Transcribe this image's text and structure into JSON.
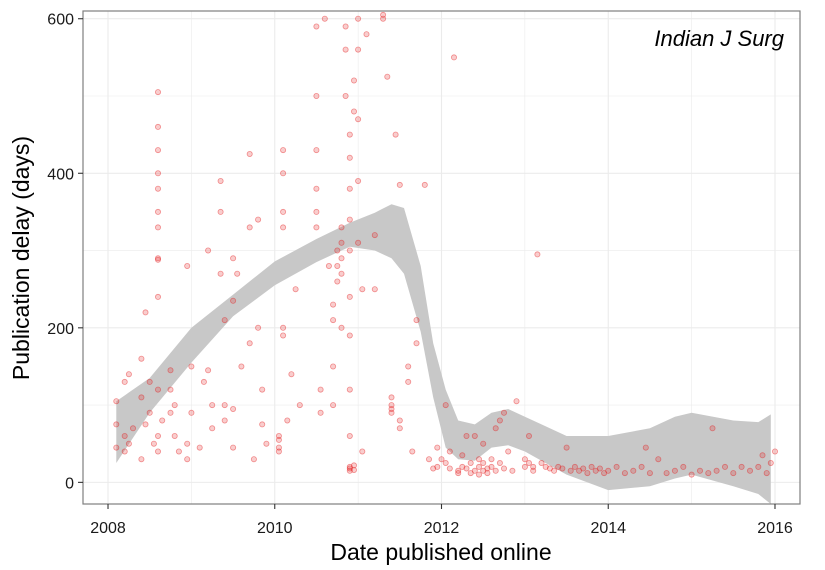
{
  "chart_data": {
    "type": "scatter",
    "title": "",
    "panel_label": "Indian J Surg",
    "xlabel": "Date published online",
    "ylabel": "Publication delay (days)",
    "x_unit": "decimal year",
    "xlim": [
      2007.7,
      2016.3
    ],
    "ylim": [
      -28,
      610
    ],
    "x_ticks": [
      2008,
      2010,
      2012,
      2014,
      2016
    ],
    "x_tick_labels": [
      "2008",
      "2010",
      "2012",
      "2014",
      "2016"
    ],
    "y_ticks": [
      0,
      200,
      400,
      600
    ],
    "y_tick_labels": [
      "0",
      "200",
      "400",
      "600"
    ],
    "grid": true,
    "legend": "none",
    "colors": {
      "points": "#e41a1c",
      "ribbon": "#c8c8c8",
      "grid": "#ebebeb",
      "frame": "#7f7f7f"
    },
    "series": [
      {
        "kind": "points",
        "points": [
          [
            2008.1,
            75
          ],
          [
            2008.1,
            45
          ],
          [
            2008.1,
            105
          ],
          [
            2008.2,
            60
          ],
          [
            2008.2,
            40
          ],
          [
            2008.2,
            130
          ],
          [
            2008.25,
            50
          ],
          [
            2008.25,
            140
          ],
          [
            2008.3,
            70
          ],
          [
            2008.4,
            30
          ],
          [
            2008.4,
            110
          ],
          [
            2008.4,
            160
          ],
          [
            2008.45,
            220
          ],
          [
            2008.45,
            75
          ],
          [
            2008.5,
            130
          ],
          [
            2008.5,
            90
          ],
          [
            2008.55,
            50
          ],
          [
            2008.6,
            288
          ],
          [
            2008.6,
            290
          ],
          [
            2008.6,
            330
          ],
          [
            2008.6,
            350
          ],
          [
            2008.6,
            380
          ],
          [
            2008.6,
            400
          ],
          [
            2008.6,
            430
          ],
          [
            2008.6,
            460
          ],
          [
            2008.6,
            505
          ],
          [
            2008.6,
            240
          ],
          [
            2008.6,
            120
          ],
          [
            2008.6,
            60
          ],
          [
            2008.6,
            40
          ],
          [
            2008.65,
            80
          ],
          [
            2008.75,
            145
          ],
          [
            2008.75,
            120
          ],
          [
            2008.75,
            90
          ],
          [
            2008.8,
            60
          ],
          [
            2008.8,
            100
          ],
          [
            2008.85,
            40
          ],
          [
            2008.95,
            50
          ],
          [
            2008.95,
            30
          ],
          [
            2008.95,
            280
          ],
          [
            2009.0,
            150
          ],
          [
            2009.0,
            90
          ],
          [
            2009.1,
            45
          ],
          [
            2009.15,
            130
          ],
          [
            2009.2,
            145
          ],
          [
            2009.2,
            300
          ],
          [
            2009.25,
            70
          ],
          [
            2009.25,
            100
          ],
          [
            2009.35,
            270
          ],
          [
            2009.35,
            350
          ],
          [
            2009.35,
            390
          ],
          [
            2009.4,
            210
          ],
          [
            2009.4,
            100
          ],
          [
            2009.4,
            80
          ],
          [
            2009.5,
            235
          ],
          [
            2009.5,
            290
          ],
          [
            2009.5,
            95
          ],
          [
            2009.5,
            45
          ],
          [
            2009.55,
            270
          ],
          [
            2009.6,
            150
          ],
          [
            2009.7,
            180
          ],
          [
            2009.7,
            330
          ],
          [
            2009.7,
            425
          ],
          [
            2009.75,
            30
          ],
          [
            2009.8,
            200
          ],
          [
            2009.8,
            340
          ],
          [
            2009.85,
            120
          ],
          [
            2009.85,
            75
          ],
          [
            2009.9,
            50
          ],
          [
            2010.05,
            60
          ],
          [
            2010.05,
            55
          ],
          [
            2010.05,
            45
          ],
          [
            2010.05,
            40
          ],
          [
            2010.1,
            200
          ],
          [
            2010.1,
            190
          ],
          [
            2010.1,
            430
          ],
          [
            2010.1,
            400
          ],
          [
            2010.1,
            350
          ],
          [
            2010.1,
            330
          ],
          [
            2010.15,
            80
          ],
          [
            2010.2,
            140
          ],
          [
            2010.25,
            250
          ],
          [
            2010.3,
            100
          ],
          [
            2010.5,
            590
          ],
          [
            2010.5,
            500
          ],
          [
            2010.5,
            430
          ],
          [
            2010.5,
            380
          ],
          [
            2010.5,
            350
          ],
          [
            2010.5,
            330
          ],
          [
            2010.55,
            120
          ],
          [
            2010.55,
            90
          ],
          [
            2010.6,
            600
          ],
          [
            2010.65,
            280
          ],
          [
            2010.7,
            230
          ],
          [
            2010.7,
            210
          ],
          [
            2010.7,
            150
          ],
          [
            2010.7,
            100
          ],
          [
            2010.75,
            280
          ],
          [
            2010.75,
            300
          ],
          [
            2010.75,
            260
          ],
          [
            2010.8,
            270
          ],
          [
            2010.8,
            290
          ],
          [
            2010.8,
            310
          ],
          [
            2010.8,
            330
          ],
          [
            2010.8,
            200
          ],
          [
            2010.85,
            500
          ],
          [
            2010.85,
            560
          ],
          [
            2010.85,
            590
          ],
          [
            2010.9,
            450
          ],
          [
            2010.9,
            420
          ],
          [
            2010.9,
            380
          ],
          [
            2010.9,
            340
          ],
          [
            2010.9,
            300
          ],
          [
            2010.9,
            240
          ],
          [
            2010.9,
            190
          ],
          [
            2010.9,
            120
          ],
          [
            2010.9,
            60
          ],
          [
            2010.9,
            20
          ],
          [
            2010.9,
            18
          ],
          [
            2010.9,
            15
          ],
          [
            2010.95,
            16
          ],
          [
            2010.95,
            22
          ],
          [
            2010.95,
            480
          ],
          [
            2010.95,
            520
          ],
          [
            2011.0,
            600
          ],
          [
            2011.0,
            560
          ],
          [
            2011.0,
            470
          ],
          [
            2011.0,
            390
          ],
          [
            2011.0,
            310
          ],
          [
            2011.05,
            250
          ],
          [
            2011.05,
            40
          ],
          [
            2011.1,
            580
          ],
          [
            2011.2,
            320
          ],
          [
            2011.2,
            250
          ],
          [
            2011.3,
            600
          ],
          [
            2011.3,
            605
          ],
          [
            2011.35,
            525
          ],
          [
            2011.4,
            90
          ],
          [
            2011.4,
            95
          ],
          [
            2011.4,
            100
          ],
          [
            2011.4,
            110
          ],
          [
            2011.45,
            450
          ],
          [
            2011.5,
            385
          ],
          [
            2011.5,
            70
          ],
          [
            2011.5,
            80
          ],
          [
            2011.6,
            130
          ],
          [
            2011.6,
            150
          ],
          [
            2011.65,
            40
          ],
          [
            2011.7,
            180
          ],
          [
            2011.7,
            210
          ],
          [
            2011.8,
            385
          ],
          [
            2011.85,
            30
          ],
          [
            2011.9,
            18
          ],
          [
            2011.95,
            20
          ],
          [
            2011.95,
            45
          ],
          [
            2012.0,
            30
          ],
          [
            2012.05,
            25
          ],
          [
            2012.05,
            100
          ],
          [
            2012.1,
            18
          ],
          [
            2012.1,
            40
          ],
          [
            2012.15,
            550
          ],
          [
            2012.2,
            15
          ],
          [
            2012.2,
            12
          ],
          [
            2012.25,
            20
          ],
          [
            2012.25,
            35
          ],
          [
            2012.3,
            60
          ],
          [
            2012.3,
            18
          ],
          [
            2012.35,
            12
          ],
          [
            2012.35,
            25
          ],
          [
            2012.4,
            60
          ],
          [
            2012.4,
            15
          ],
          [
            2012.45,
            10
          ],
          [
            2012.45,
            20
          ],
          [
            2012.45,
            30
          ],
          [
            2012.5,
            15
          ],
          [
            2012.5,
            25
          ],
          [
            2012.5,
            50
          ],
          [
            2012.55,
            12
          ],
          [
            2012.55,
            18
          ],
          [
            2012.6,
            20
          ],
          [
            2012.6,
            30
          ],
          [
            2012.65,
            15
          ],
          [
            2012.65,
            70
          ],
          [
            2012.7,
            25
          ],
          [
            2012.7,
            80
          ],
          [
            2012.75,
            18
          ],
          [
            2012.75,
            90
          ],
          [
            2012.8,
            40
          ],
          [
            2012.85,
            15
          ],
          [
            2012.9,
            105
          ],
          [
            2013.0,
            30
          ],
          [
            2013.0,
            20
          ],
          [
            2013.05,
            25
          ],
          [
            2013.05,
            60
          ],
          [
            2013.1,
            20
          ],
          [
            2013.1,
            15
          ],
          [
            2013.15,
            295
          ],
          [
            2013.2,
            25
          ],
          [
            2013.25,
            20
          ],
          [
            2013.3,
            18
          ],
          [
            2013.35,
            15
          ],
          [
            2013.4,
            20
          ],
          [
            2013.45,
            18
          ],
          [
            2013.5,
            45
          ],
          [
            2013.55,
            15
          ],
          [
            2013.6,
            20
          ],
          [
            2013.65,
            15
          ],
          [
            2013.7,
            18
          ],
          [
            2013.75,
            12
          ],
          [
            2013.8,
            20
          ],
          [
            2013.85,
            15
          ],
          [
            2013.9,
            18
          ],
          [
            2013.95,
            12
          ],
          [
            2014.0,
            15
          ],
          [
            2014.1,
            20
          ],
          [
            2014.2,
            12
          ],
          [
            2014.3,
            15
          ],
          [
            2014.4,
            20
          ],
          [
            2014.45,
            45
          ],
          [
            2014.5,
            12
          ],
          [
            2014.6,
            30
          ],
          [
            2014.7,
            12
          ],
          [
            2014.8,
            15
          ],
          [
            2014.9,
            20
          ],
          [
            2015.0,
            10
          ],
          [
            2015.1,
            15
          ],
          [
            2015.2,
            12
          ],
          [
            2015.25,
            70
          ],
          [
            2015.3,
            15
          ],
          [
            2015.4,
            20
          ],
          [
            2015.5,
            12
          ],
          [
            2015.6,
            20
          ],
          [
            2015.7,
            15
          ],
          [
            2015.8,
            20
          ],
          [
            2015.85,
            35
          ],
          [
            2015.9,
            12
          ],
          [
            2015.95,
            25
          ],
          [
            2016.0,
            40
          ]
        ]
      },
      {
        "kind": "smooth_confidence_band",
        "upper": [
          [
            2008.1,
            105
          ],
          [
            2008.5,
            135
          ],
          [
            2009.0,
            200
          ],
          [
            2009.5,
            243
          ],
          [
            2010.0,
            286
          ],
          [
            2010.5,
            315
          ],
          [
            2010.9,
            336
          ],
          [
            2011.2,
            349
          ],
          [
            2011.4,
            360
          ],
          [
            2011.55,
            355
          ],
          [
            2011.75,
            280
          ],
          [
            2011.9,
            180
          ],
          [
            2012.05,
            120
          ],
          [
            2012.2,
            80
          ],
          [
            2012.4,
            75
          ],
          [
            2012.6,
            90
          ],
          [
            2012.8,
            95
          ],
          [
            2013.0,
            85
          ],
          [
            2013.2,
            75
          ],
          [
            2013.5,
            60
          ],
          [
            2014.0,
            60
          ],
          [
            2014.5,
            70
          ],
          [
            2014.8,
            85
          ],
          [
            2015.0,
            90
          ],
          [
            2015.5,
            80
          ],
          [
            2015.8,
            78
          ],
          [
            2015.95,
            88
          ]
        ],
        "lower": [
          [
            2008.1,
            25
          ],
          [
            2008.5,
            90
          ],
          [
            2009.0,
            155
          ],
          [
            2009.5,
            215
          ],
          [
            2010.0,
            255
          ],
          [
            2010.5,
            285
          ],
          [
            2010.9,
            305
          ],
          [
            2011.2,
            300
          ],
          [
            2011.4,
            290
          ],
          [
            2011.55,
            270
          ],
          [
            2011.75,
            195
          ],
          [
            2011.9,
            110
          ],
          [
            2012.05,
            45
          ],
          [
            2012.2,
            30
          ],
          [
            2012.4,
            28
          ],
          [
            2012.6,
            45
          ],
          [
            2012.8,
            48
          ],
          [
            2013.0,
            40
          ],
          [
            2013.2,
            28
          ],
          [
            2013.5,
            10
          ],
          [
            2014.0,
            -10
          ],
          [
            2014.5,
            -5
          ],
          [
            2014.8,
            5
          ],
          [
            2015.0,
            10
          ],
          [
            2015.5,
            -5
          ],
          [
            2015.8,
            -15
          ],
          [
            2015.95,
            -28
          ]
        ]
      }
    ]
  }
}
